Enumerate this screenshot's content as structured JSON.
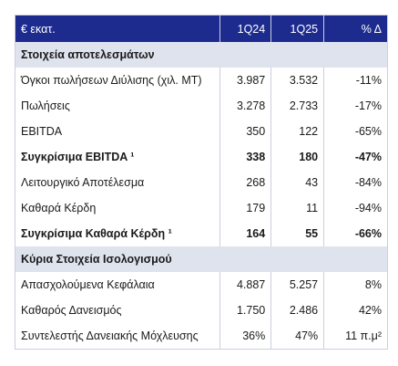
{
  "table": {
    "header": [
      "€ εκατ.",
      "1Q24",
      "1Q25",
      "% Δ"
    ],
    "sections": [
      {
        "title": "Στοιχεία αποτελεσμάτων",
        "rows": [
          [
            "Όγκοι πωλήσεων Διύλισης (χιλ. ΜΤ)",
            "3.987",
            "3.532",
            "-11%"
          ],
          [
            "Πωλήσεις",
            "3.278",
            "2.733",
            "-17%"
          ],
          [
            "EBITDA",
            "350",
            "122",
            "-65%"
          ],
          [
            "Συγκρίσιμα EBITDA ¹",
            "338",
            "180",
            "-47%"
          ],
          [
            "Λειτουργικό Αποτέλεσμα",
            "268",
            "43",
            "-84%"
          ],
          [
            "Καθαρά Κέρδη",
            "179",
            "11",
            "-94%"
          ],
          [
            "Συγκρίσιμα Καθαρά Κέρδη ¹",
            "164",
            "55",
            "-66%"
          ]
        ]
      },
      {
        "title": "Κύρια Στοιχεία Ισολογισμού",
        "rows": [
          [
            "Απασχολούμενα Κεφάλαια",
            "4.887",
            "5.257",
            "8%"
          ],
          [
            "Καθαρός Δανεισμός",
            "1.750",
            "2.486",
            "42%"
          ],
          [
            "Συντελεστής Δανειακής Μόχλευσης",
            "36%",
            "47%",
            "11 π.μ²"
          ]
        ]
      }
    ]
  }
}
